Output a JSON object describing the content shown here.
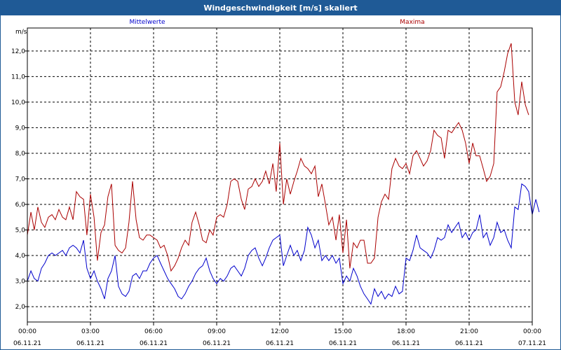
{
  "window_title": "Windgeschwindigkeit [m/s] skaliert",
  "chart_data": {
    "type": "line",
    "ylabel": "m/s",
    "ylim": [
      1.4,
      12.9
    ],
    "yticks": [
      "2,0",
      "3,0",
      "4,0",
      "5,0",
      "6,0",
      "7,0",
      "8,0",
      "9,0",
      "10,0",
      "11,0",
      "12,0"
    ],
    "ytick_values": [
      2,
      3,
      4,
      5,
      6,
      7,
      8,
      9,
      10,
      11,
      12
    ],
    "xlim": [
      0,
      24
    ],
    "xticks": [
      {
        "h": 0,
        "time": "00:00",
        "date": "06.11.21"
      },
      {
        "h": 3,
        "time": "03:00",
        "date": "06.11.21"
      },
      {
        "h": 6,
        "time": "06:00",
        "date": "06.11.21"
      },
      {
        "h": 9,
        "time": "09:00",
        "date": "06.11.21"
      },
      {
        "h": 12,
        "time": "12:00",
        "date": "06.11.21"
      },
      {
        "h": 15,
        "time": "15:00",
        "date": "06.11.21"
      },
      {
        "h": 18,
        "time": "18:00",
        "date": "06.11.21"
      },
      {
        "h": 21,
        "time": "21:00",
        "date": "06.11.21"
      },
      {
        "h": 24,
        "time": "00:00",
        "date": "07.11.21"
      }
    ],
    "grid": true,
    "series": [
      {
        "name": "Mittelwerte",
        "color": "#0000cc",
        "points": [
          [
            0.0,
            3.0
          ],
          [
            0.17,
            3.4
          ],
          [
            0.33,
            3.1
          ],
          [
            0.5,
            3.0
          ],
          [
            0.67,
            3.5
          ],
          [
            0.83,
            3.7
          ],
          [
            1.0,
            4.0
          ],
          [
            1.17,
            4.1
          ],
          [
            1.33,
            4.0
          ],
          [
            1.5,
            4.1
          ],
          [
            1.67,
            4.2
          ],
          [
            1.83,
            4.0
          ],
          [
            2.0,
            4.3
          ],
          [
            2.17,
            4.4
          ],
          [
            2.33,
            4.3
          ],
          [
            2.5,
            4.1
          ],
          [
            2.67,
            4.6
          ],
          [
            2.83,
            3.5
          ],
          [
            3.0,
            3.1
          ],
          [
            3.17,
            3.4
          ],
          [
            3.33,
            3.0
          ],
          [
            3.5,
            2.7
          ],
          [
            3.67,
            2.3
          ],
          [
            3.83,
            3.1
          ],
          [
            4.0,
            3.4
          ],
          [
            4.17,
            4.0
          ],
          [
            4.33,
            2.8
          ],
          [
            4.5,
            2.5
          ],
          [
            4.67,
            2.4
          ],
          [
            4.83,
            2.6
          ],
          [
            5.0,
            3.2
          ],
          [
            5.17,
            3.3
          ],
          [
            5.33,
            3.1
          ],
          [
            5.5,
            3.4
          ],
          [
            5.67,
            3.4
          ],
          [
            5.83,
            3.7
          ],
          [
            6.0,
            3.9
          ],
          [
            6.17,
            4.0
          ],
          [
            6.33,
            3.7
          ],
          [
            6.5,
            3.4
          ],
          [
            6.67,
            3.1
          ],
          [
            6.83,
            2.9
          ],
          [
            7.0,
            2.7
          ],
          [
            7.17,
            2.4
          ],
          [
            7.33,
            2.3
          ],
          [
            7.5,
            2.5
          ],
          [
            7.67,
            2.8
          ],
          [
            7.83,
            3.0
          ],
          [
            8.0,
            3.3
          ],
          [
            8.17,
            3.5
          ],
          [
            8.33,
            3.6
          ],
          [
            8.5,
            3.9
          ],
          [
            8.67,
            3.4
          ],
          [
            8.83,
            3.1
          ],
          [
            9.0,
            2.9
          ],
          [
            9.17,
            3.1
          ],
          [
            9.33,
            3.0
          ],
          [
            9.5,
            3.2
          ],
          [
            9.67,
            3.5
          ],
          [
            9.83,
            3.6
          ],
          [
            10.0,
            3.4
          ],
          [
            10.17,
            3.2
          ],
          [
            10.33,
            3.5
          ],
          [
            10.5,
            4.0
          ],
          [
            10.67,
            4.2
          ],
          [
            10.83,
            4.3
          ],
          [
            11.0,
            3.9
          ],
          [
            11.17,
            3.6
          ],
          [
            11.33,
            3.9
          ],
          [
            11.5,
            4.3
          ],
          [
            11.67,
            4.6
          ],
          [
            11.83,
            4.7
          ],
          [
            12.0,
            4.8
          ],
          [
            12.17,
            3.6
          ],
          [
            12.33,
            4.0
          ],
          [
            12.5,
            4.4
          ],
          [
            12.67,
            4.0
          ],
          [
            12.83,
            4.2
          ],
          [
            13.0,
            3.8
          ],
          [
            13.17,
            4.2
          ],
          [
            13.33,
            5.1
          ],
          [
            13.5,
            4.8
          ],
          [
            13.67,
            4.3
          ],
          [
            13.83,
            4.6
          ],
          [
            14.0,
            3.8
          ],
          [
            14.17,
            4.0
          ],
          [
            14.33,
            3.8
          ],
          [
            14.5,
            4.0
          ],
          [
            14.67,
            3.7
          ],
          [
            14.83,
            3.9
          ],
          [
            15.0,
            2.9
          ],
          [
            15.17,
            3.2
          ],
          [
            15.33,
            3.0
          ],
          [
            15.5,
            3.5
          ],
          [
            15.67,
            3.2
          ],
          [
            15.83,
            2.8
          ],
          [
            16.0,
            2.5
          ],
          [
            16.17,
            2.3
          ],
          [
            16.33,
            2.1
          ],
          [
            16.5,
            2.7
          ],
          [
            16.67,
            2.4
          ],
          [
            16.83,
            2.6
          ],
          [
            17.0,
            2.3
          ],
          [
            17.17,
            2.5
          ],
          [
            17.33,
            2.4
          ],
          [
            17.5,
            2.8
          ],
          [
            17.67,
            2.5
          ],
          [
            17.83,
            2.6
          ],
          [
            18.0,
            3.9
          ],
          [
            18.17,
            3.8
          ],
          [
            18.33,
            4.2
          ],
          [
            18.5,
            4.8
          ],
          [
            18.67,
            4.3
          ],
          [
            18.83,
            4.2
          ],
          [
            19.0,
            4.1
          ],
          [
            19.17,
            3.9
          ],
          [
            19.33,
            4.2
          ],
          [
            19.5,
            4.7
          ],
          [
            19.67,
            4.6
          ],
          [
            19.83,
            4.7
          ],
          [
            20.0,
            5.2
          ],
          [
            20.17,
            4.9
          ],
          [
            20.33,
            5.1
          ],
          [
            20.5,
            5.3
          ],
          [
            20.67,
            4.7
          ],
          [
            20.83,
            4.9
          ],
          [
            21.0,
            4.6
          ],
          [
            21.17,
            4.9
          ],
          [
            21.33,
            5.0
          ],
          [
            21.5,
            5.6
          ],
          [
            21.67,
            4.7
          ],
          [
            21.83,
            4.9
          ],
          [
            22.0,
            4.4
          ],
          [
            22.17,
            4.7
          ],
          [
            22.33,
            5.3
          ],
          [
            22.5,
            4.9
          ],
          [
            22.67,
            5.0
          ],
          [
            22.83,
            4.6
          ],
          [
            23.0,
            4.3
          ],
          [
            23.17,
            5.9
          ],
          [
            23.33,
            5.8
          ],
          [
            23.5,
            6.8
          ],
          [
            23.67,
            6.7
          ],
          [
            23.83,
            6.5
          ],
          [
            24.0,
            5.6
          ],
          [
            24.17,
            6.2
          ],
          [
            24.33,
            5.7
          ]
        ]
      },
      {
        "name": "Maxima",
        "color": "#aa0000",
        "points": [
          [
            0.0,
            4.8
          ],
          [
            0.17,
            5.7
          ],
          [
            0.33,
            5.0
          ],
          [
            0.5,
            5.9
          ],
          [
            0.67,
            5.3
          ],
          [
            0.83,
            5.1
          ],
          [
            1.0,
            5.5
          ],
          [
            1.17,
            5.6
          ],
          [
            1.33,
            5.4
          ],
          [
            1.5,
            5.8
          ],
          [
            1.67,
            5.5
          ],
          [
            1.83,
            5.4
          ],
          [
            2.0,
            5.9
          ],
          [
            2.17,
            5.4
          ],
          [
            2.33,
            6.5
          ],
          [
            2.5,
            6.3
          ],
          [
            2.67,
            6.2
          ],
          [
            2.83,
            4.8
          ],
          [
            3.0,
            6.4
          ],
          [
            3.17,
            5.5
          ],
          [
            3.33,
            3.8
          ],
          [
            3.5,
            4.9
          ],
          [
            3.67,
            5.2
          ],
          [
            3.83,
            6.3
          ],
          [
            4.0,
            6.8
          ],
          [
            4.17,
            4.4
          ],
          [
            4.33,
            4.2
          ],
          [
            4.5,
            4.1
          ],
          [
            4.67,
            4.3
          ],
          [
            4.83,
            5.3
          ],
          [
            5.0,
            6.9
          ],
          [
            5.17,
            5.4
          ],
          [
            5.33,
            4.7
          ],
          [
            5.5,
            4.6
          ],
          [
            5.67,
            4.8
          ],
          [
            5.83,
            4.8
          ],
          [
            6.0,
            4.7
          ],
          [
            6.17,
            4.6
          ],
          [
            6.33,
            4.3
          ],
          [
            6.5,
            4.4
          ],
          [
            6.67,
            4.0
          ],
          [
            6.83,
            3.4
          ],
          [
            7.0,
            3.6
          ],
          [
            7.17,
            3.9
          ],
          [
            7.33,
            4.3
          ],
          [
            7.5,
            4.6
          ],
          [
            7.67,
            4.4
          ],
          [
            7.83,
            5.3
          ],
          [
            8.0,
            5.7
          ],
          [
            8.17,
            5.2
          ],
          [
            8.33,
            4.6
          ],
          [
            8.5,
            4.5
          ],
          [
            8.67,
            5.0
          ],
          [
            8.83,
            4.8
          ],
          [
            9.0,
            5.5
          ],
          [
            9.17,
            5.6
          ],
          [
            9.33,
            5.5
          ],
          [
            9.5,
            6.0
          ],
          [
            9.67,
            6.9
          ],
          [
            9.83,
            7.0
          ],
          [
            10.0,
            6.9
          ],
          [
            10.17,
            6.2
          ],
          [
            10.33,
            5.8
          ],
          [
            10.5,
            6.6
          ],
          [
            10.67,
            6.7
          ],
          [
            10.83,
            7.0
          ],
          [
            11.0,
            6.7
          ],
          [
            11.17,
            6.9
          ],
          [
            11.33,
            7.3
          ],
          [
            11.5,
            6.8
          ],
          [
            11.67,
            7.6
          ],
          [
            11.83,
            6.5
          ],
          [
            12.0,
            8.4
          ],
          [
            12.17,
            6.0
          ],
          [
            12.33,
            7.0
          ],
          [
            12.5,
            6.4
          ],
          [
            12.67,
            6.9
          ],
          [
            12.83,
            7.3
          ],
          [
            13.0,
            7.8
          ],
          [
            13.17,
            7.5
          ],
          [
            13.33,
            7.4
          ],
          [
            13.5,
            7.2
          ],
          [
            13.67,
            7.5
          ],
          [
            13.83,
            6.3
          ],
          [
            14.0,
            6.8
          ],
          [
            14.17,
            6.0
          ],
          [
            14.33,
            5.2
          ],
          [
            14.5,
            5.5
          ],
          [
            14.67,
            4.6
          ],
          [
            14.83,
            5.6
          ],
          [
            15.0,
            4.1
          ],
          [
            15.17,
            5.4
          ],
          [
            15.33,
            3.5
          ],
          [
            15.5,
            4.5
          ],
          [
            15.67,
            4.3
          ],
          [
            15.83,
            4.6
          ],
          [
            16.0,
            4.6
          ],
          [
            16.17,
            3.7
          ],
          [
            16.33,
            3.7
          ],
          [
            16.5,
            3.9
          ],
          [
            16.67,
            5.5
          ],
          [
            16.83,
            6.1
          ],
          [
            17.0,
            6.4
          ],
          [
            17.17,
            6.2
          ],
          [
            17.33,
            7.4
          ],
          [
            17.5,
            7.8
          ],
          [
            17.67,
            7.5
          ],
          [
            17.83,
            7.4
          ],
          [
            18.0,
            7.6
          ],
          [
            18.17,
            7.2
          ],
          [
            18.33,
            7.9
          ],
          [
            18.5,
            8.1
          ],
          [
            18.67,
            7.8
          ],
          [
            18.83,
            7.5
          ],
          [
            19.0,
            7.7
          ],
          [
            19.17,
            8.1
          ],
          [
            19.33,
            8.9
          ],
          [
            19.5,
            8.7
          ],
          [
            19.67,
            8.6
          ],
          [
            19.83,
            7.8
          ],
          [
            20.0,
            8.9
          ],
          [
            20.17,
            8.8
          ],
          [
            20.33,
            9.0
          ],
          [
            20.5,
            9.2
          ],
          [
            20.67,
            8.9
          ],
          [
            20.83,
            8.4
          ],
          [
            21.0,
            7.6
          ],
          [
            21.17,
            8.4
          ],
          [
            21.33,
            7.9
          ],
          [
            21.5,
            7.9
          ],
          [
            21.67,
            7.4
          ],
          [
            21.83,
            6.9
          ],
          [
            22.0,
            7.1
          ],
          [
            22.17,
            7.6
          ],
          [
            22.33,
            10.4
          ],
          [
            22.5,
            10.6
          ],
          [
            22.67,
            11.2
          ],
          [
            22.83,
            11.9
          ],
          [
            23.0,
            12.3
          ],
          [
            23.17,
            10.0
          ],
          [
            23.33,
            9.5
          ],
          [
            23.5,
            10.8
          ],
          [
            23.67,
            9.9
          ],
          [
            23.83,
            9.5
          ]
        ]
      }
    ]
  }
}
